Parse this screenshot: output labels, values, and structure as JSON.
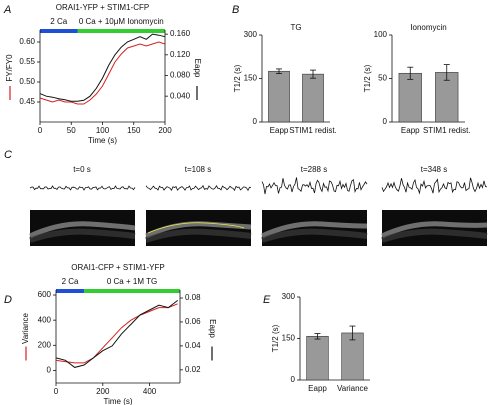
{
  "chart_data": [
    {
      "type": "line",
      "title": "ORAI1-YFP + STIM1-CFP",
      "bars": [
        {
          "label": "2 Ca",
          "color": "#1f4fd6",
          "range": [
            0,
            60
          ]
        },
        {
          "label": "0 Ca + 10μM Ionomycin",
          "color": "#33cc33",
          "range": [
            60,
            200
          ]
        }
      ],
      "x": [
        0,
        10,
        20,
        30,
        40,
        50,
        60,
        70,
        80,
        90,
        100,
        110,
        120,
        130,
        140,
        150,
        160,
        170,
        180,
        190,
        200
      ],
      "xlabel": "Time (s)",
      "xlim": [
        0,
        200
      ],
      "xticks": [
        0,
        50,
        100,
        150,
        200
      ],
      "ylim": [
        0.4,
        0.63
      ],
      "yticks": [
        0.45,
        {
          "value": 0.5,
          "label": "0.50"
        },
        0.55,
        {
          "value": 0.6,
          "label": "0.60"
        }
      ],
      "y2lim": [
        -0.01,
        0.168
      ],
      "y2ticks": [
        {
          "value": 0.04,
          "label": "0.040"
        },
        {
          "value": 0.08,
          "label": "0.080"
        },
        {
          "value": 0.12,
          "label": "0.120"
        },
        {
          "value": 0.16,
          "label": "0.160"
        }
      ],
      "series": [
        {
          "name": "FY/FY0",
          "color": "#d62020",
          "values": [
            0.46,
            0.455,
            0.45,
            0.455,
            0.45,
            0.45,
            0.445,
            0.445,
            0.455,
            0.47,
            0.49,
            0.52,
            0.55,
            0.57,
            0.585,
            0.59,
            0.595,
            0.59,
            0.595,
            0.6,
            0.595
          ]
        },
        {
          "name": "Eapp",
          "color": "#111111",
          "axis": "y2",
          "values": [
            0.045,
            0.04,
            0.038,
            0.035,
            0.033,
            0.03,
            0.03,
            0.032,
            0.04,
            0.055,
            0.075,
            0.1,
            0.12,
            0.135,
            0.145,
            0.15,
            0.155,
            0.15,
            0.16,
            0.158,
            0.155
          ]
        }
      ]
    },
    {
      "type": "bar",
      "title": "TG",
      "ylabel": "T1/2 (s)",
      "categories": [
        "Eapp",
        "STIM1 redist."
      ],
      "values": [
        175,
        165
      ],
      "errors": [
        8,
        14
      ],
      "color": "#999999",
      "ylim": [
        0,
        300
      ],
      "yticks": [
        0,
        150,
        300
      ]
    },
    {
      "type": "bar",
      "title": "Ionomycin",
      "ylabel": "T1/2 (s)",
      "categories": [
        "Eapp",
        "STIM1 redist."
      ],
      "values": [
        56,
        57
      ],
      "errors": [
        7,
        9
      ],
      "color": "#999999",
      "ylim": [
        0,
        100
      ],
      "yticks": [
        0,
        50,
        100
      ]
    },
    {
      "type": "line",
      "title": "ORAI1-CFP + STIM1-YFP",
      "bars": [
        {
          "label": "2 Ca",
          "color": "#1f4fd6",
          "range": [
            0,
            120
          ]
        },
        {
          "label": "0 Ca + 1M TG",
          "color": "#33cc33",
          "range": [
            120,
            530
          ]
        }
      ],
      "x": [
        0,
        40,
        80,
        120,
        160,
        200,
        240,
        280,
        320,
        360,
        400,
        440,
        480,
        520
      ],
      "xlabel": "Time (s)",
      "xlim": [
        0,
        530
      ],
      "xticks": [
        0,
        200,
        400
      ],
      "ylim": [
        -100,
        640
      ],
      "yticks": [
        0,
        200,
        400,
        600
      ],
      "y2lim": [
        0.009,
        0.0867
      ],
      "y2ticks": [
        0.02,
        0.04,
        0.06,
        0.08
      ],
      "series": [
        {
          "name": "Variance",
          "color": "#d62020",
          "values": [
            80,
            70,
            60,
            60,
            100,
            180,
            260,
            340,
            400,
            440,
            470,
            500,
            500,
            530
          ]
        },
        {
          "name": "Eapp",
          "color": "#111111",
          "axis": "y2",
          "values": [
            0.03,
            0.028,
            0.022,
            0.024,
            0.03,
            0.036,
            0.04,
            0.05,
            0.058,
            0.066,
            0.07,
            0.074,
            0.072,
            0.078
          ]
        }
      ]
    },
    {
      "type": "bar",
      "ylabel": "T1/2 (s)",
      "categories": [
        "Eapp",
        "Variance"
      ],
      "values": [
        158,
        170
      ],
      "errors": [
        10,
        25
      ],
      "color": "#999999",
      "ylim": [
        0,
        300
      ],
      "yticks": [
        0,
        150,
        300
      ]
    }
  ],
  "panel_labels": [
    "A",
    "B",
    "C",
    "D",
    "E"
  ],
  "panel_c": {
    "labels": [
      "t=0 s",
      "t=108 s",
      "t=288 s",
      "t=348 s"
    ]
  }
}
